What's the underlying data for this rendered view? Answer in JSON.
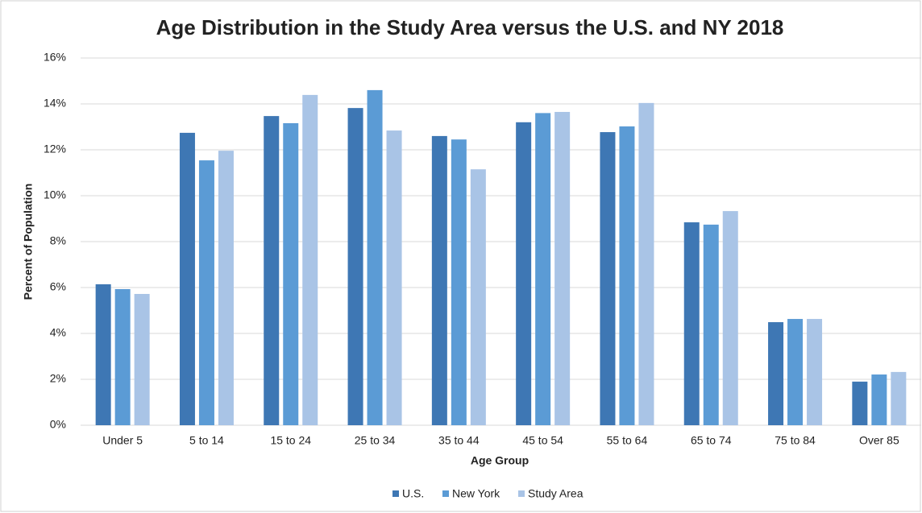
{
  "chart_data": {
    "type": "bar",
    "title": "Age Distribution in the Study Area versus the U.S. and NY 2018",
    "x_label": "Age Group",
    "y_label": "Percent of Population",
    "categories": [
      "Under 5",
      "5 to 14",
      "15 to 24",
      "25 to 34",
      "35 to 44",
      "45 to 54",
      "55 to 64",
      "65 to 74",
      "75 to 84",
      "Over 85"
    ],
    "series": [
      {
        "name": "U.S.",
        "color": "#3e77b4",
        "values": [
          6.14,
          12.74,
          13.47,
          13.82,
          12.6,
          13.2,
          12.77,
          8.84,
          4.49,
          1.9
        ]
      },
      {
        "name": "New York",
        "color": "#5b9bd5",
        "values": [
          5.93,
          11.54,
          13.16,
          14.6,
          12.45,
          13.6,
          13.02,
          8.74,
          4.63,
          2.21
        ]
      },
      {
        "name": "Study Area",
        "color": "#a9c4e6",
        "values": [
          5.72,
          11.96,
          14.39,
          12.84,
          11.15,
          13.65,
          14.04,
          9.33,
          4.63,
          2.32
        ]
      }
    ],
    "ylim": [
      0,
      16
    ],
    "yticks": [
      {
        "value": 0,
        "label": "0%"
      },
      {
        "value": 2,
        "label": "2%"
      },
      {
        "value": 4,
        "label": "4%"
      },
      {
        "value": 6,
        "label": "6%"
      },
      {
        "value": 8,
        "label": "8%"
      },
      {
        "value": 10,
        "label": "10%"
      },
      {
        "value": 12,
        "label": "12%"
      },
      {
        "value": 14,
        "label": "14%"
      },
      {
        "value": 16,
        "label": "16%"
      }
    ],
    "grid": true,
    "legend": "bottom"
  }
}
